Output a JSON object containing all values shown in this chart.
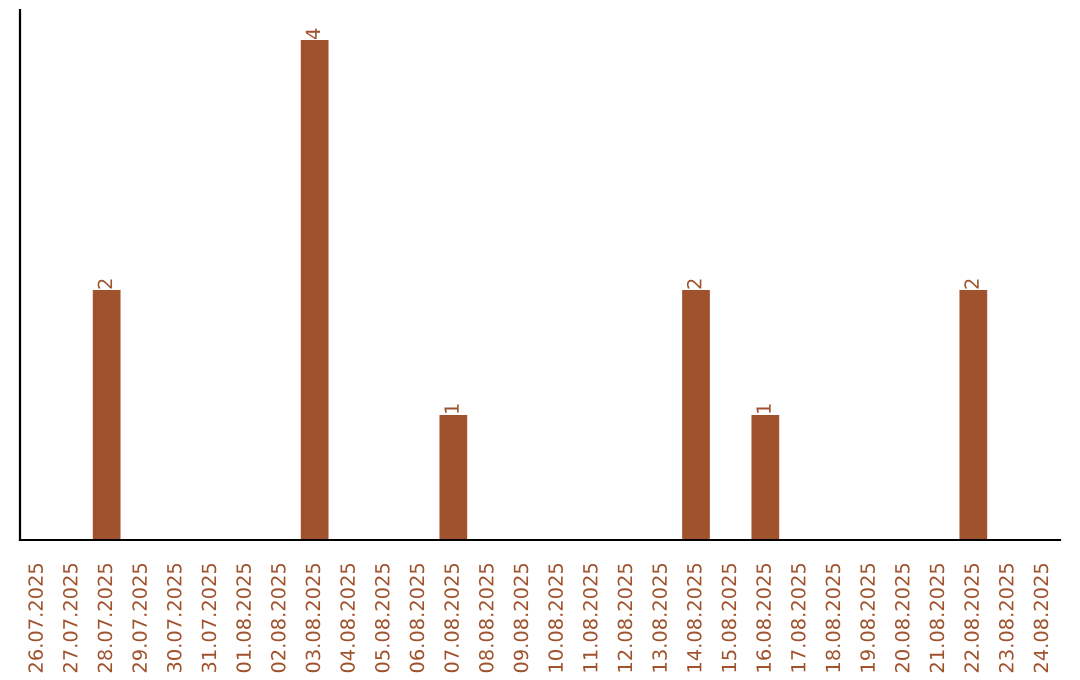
{
  "chart_data": {
    "type": "bar",
    "categories": [
      "26.07.2025",
      "27.07.2025",
      "28.07.2025",
      "29.07.2025",
      "30.07.2025",
      "31.07.2025",
      "01.08.2025",
      "02.08.2025",
      "03.08.2025",
      "04.08.2025",
      "05.08.2025",
      "06.08.2025",
      "07.08.2025",
      "08.08.2025",
      "09.08.2025",
      "10.08.2025",
      "11.08.2025",
      "12.08.2025",
      "13.08.2025",
      "14.08.2025",
      "15.08.2025",
      "16.08.2025",
      "17.08.2025",
      "18.08.2025",
      "19.08.2025",
      "20.08.2025",
      "21.08.2025",
      "22.08.2025",
      "23.08.2025",
      "24.08.2025"
    ],
    "values": [
      0,
      0,
      2,
      0,
      0,
      0,
      0,
      0,
      4,
      0,
      0,
      0,
      1,
      0,
      0,
      0,
      0,
      0,
      0,
      2,
      0,
      1,
      0,
      0,
      0,
      0,
      0,
      2,
      0,
      0
    ],
    "value_labels": [
      null,
      null,
      "2",
      null,
      null,
      null,
      null,
      null,
      "4",
      null,
      null,
      null,
      "1",
      null,
      null,
      null,
      null,
      null,
      null,
      "2",
      null,
      "1",
      null,
      null,
      null,
      null,
      null,
      "2",
      null,
      null
    ],
    "color": "#a0522d",
    "tick_labels": "x",
    "grid": false
  }
}
